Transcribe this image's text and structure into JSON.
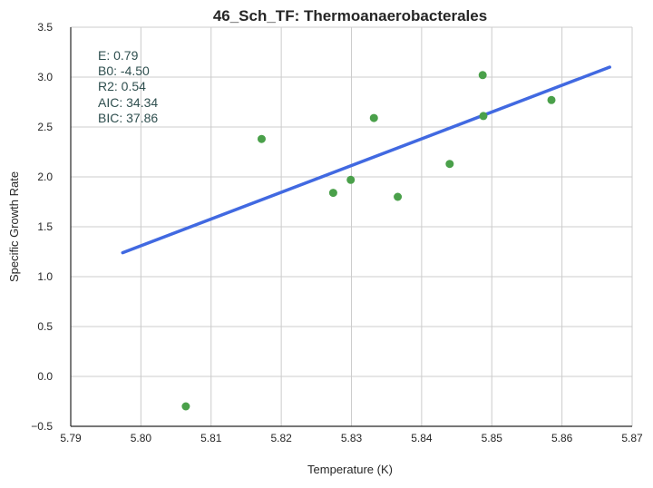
{
  "chart_data": {
    "type": "scatter",
    "title": "46_Sch_TF: Thermoanaerobacterales",
    "xlabel": "Temperature (K)",
    "ylabel": "Specific Growth Rate",
    "xlim": [
      5.79,
      5.87
    ],
    "ylim": [
      -0.5,
      3.5
    ],
    "grid": true,
    "x_ticks": [
      "5.79",
      "5.80",
      "5.81",
      "5.82",
      "5.83",
      "5.84",
      "5.85",
      "5.86",
      "5.87"
    ],
    "y_ticks": [
      "−0.5",
      "0.0",
      "0.5",
      "1.0",
      "1.5",
      "2.0",
      "2.5",
      "3.0",
      "3.5"
    ],
    "points": {
      "color": "#4aa04a",
      "x": [
        5.8064,
        5.8172,
        5.8274,
        5.8299,
        5.8332,
        5.8366,
        5.844,
        5.8487,
        5.8488,
        5.8585
      ],
      "y": [
        -0.3,
        2.38,
        1.84,
        1.97,
        2.59,
        1.8,
        2.13,
        3.02,
        2.61,
        2.77
      ]
    },
    "fit_line": {
      "color": "#4169e1",
      "x": [
        5.7974,
        5.8668
      ],
      "y": [
        1.24,
        3.1
      ]
    },
    "annotation": {
      "lines": [
        "E:  0.79",
        "B0:  -4.50",
        "R2:  0.54",
        "AIC: 34.34",
        "BIC: 37.86"
      ]
    }
  }
}
